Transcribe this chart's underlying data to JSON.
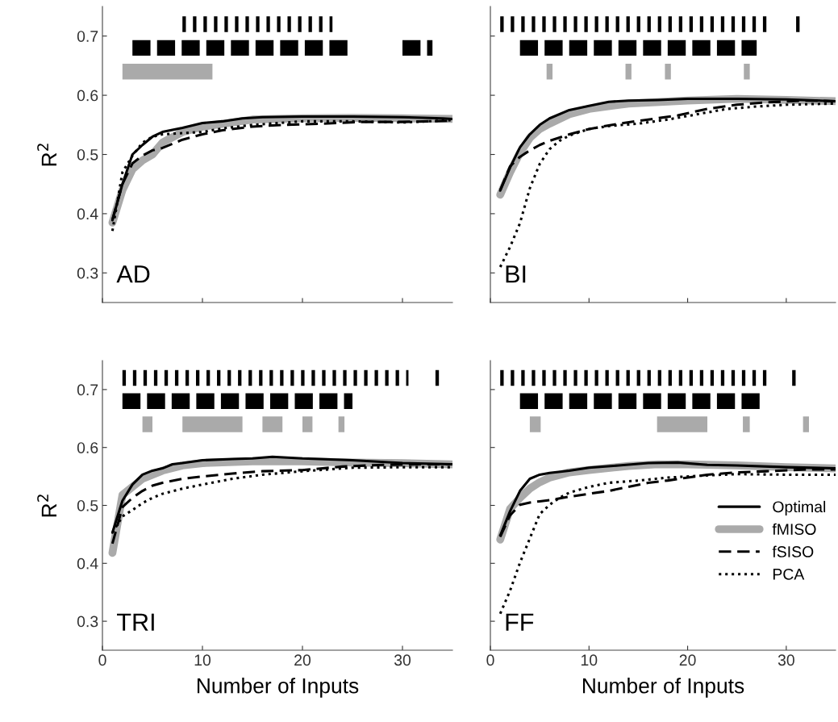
{
  "chart_data": [
    {
      "type": "line",
      "ylabel": "R$^{2}$",
      "annotations": [
        "AD"
      ],
      "xlim": [
        0,
        35
      ],
      "xticks": [
        0,
        10,
        20,
        30
      ],
      "ylim": [
        0.25,
        0.75
      ],
      "yticks": [
        0.3,
        0.4,
        0.5,
        0.6,
        0.7
      ],
      "tick_labels": "y",
      "series": [
        {
          "color": "#000000",
          "line_style": "dotted",
          "x": [
            8,
            23
          ],
          "values": [
            0.72,
            0.72
          ]
        },
        {
          "color": "#000000",
          "line_style": "dashed",
          "x": [
            3,
            25,
            27,
            30,
            33
          ],
          "values": [
            0.68,
            0.68,
            null,
            0.68,
            0.68
          ]
        },
        {
          "color": "#aaaaaa",
          "line_style": "solid",
          "x": [
            2,
            11
          ],
          "values": [
            0.64,
            0.64
          ]
        },
        {
          "color": "#aaaaaa",
          "line_style": "solid",
          "x": [
            1,
            2,
            3,
            4,
            5,
            6,
            8,
            10,
            15,
            20,
            25,
            30,
            35
          ],
          "values": [
            0.385,
            0.44,
            0.475,
            0.49,
            0.5,
            0.52,
            0.538,
            0.547,
            0.559,
            0.561,
            0.562,
            0.561,
            0.56
          ]
        },
        {
          "color": "#000000",
          "line_style": "solid",
          "x": [
            1,
            2,
            3,
            4,
            5,
            6,
            8,
            10,
            12,
            14,
            16,
            20,
            25,
            30,
            34,
            35
          ],
          "values": [
            0.389,
            0.45,
            0.5,
            0.516,
            0.53,
            0.538,
            0.545,
            0.553,
            0.556,
            0.561,
            0.563,
            0.564,
            0.564,
            0.563,
            0.561,
            0.56
          ]
        },
        {
          "color": "#000000",
          "line_style": "dashed",
          "x": [
            1,
            2,
            3,
            4,
            5,
            6,
            8,
            10,
            12,
            15,
            18,
            22,
            26,
            30,
            35
          ],
          "values": [
            0.39,
            0.45,
            0.485,
            0.498,
            0.507,
            0.511,
            0.525,
            0.534,
            0.541,
            0.547,
            0.55,
            0.552,
            0.555,
            0.555,
            0.557
          ]
        },
        {
          "color": "#000000",
          "line_style": "dotted",
          "x": [
            1,
            2,
            3,
            4,
            5,
            6,
            8,
            10,
            12,
            15,
            20,
            25,
            30,
            35
          ],
          "values": [
            0.371,
            0.47,
            0.498,
            0.52,
            0.53,
            0.534,
            0.536,
            0.538,
            0.544,
            0.55,
            0.556,
            0.556,
            0.554,
            0.558
          ]
        }
      ]
    },
    {
      "type": "line",
      "annotations": [
        "BI"
      ],
      "xlim": [
        0,
        35
      ],
      "xticks": [
        0,
        10,
        20,
        30
      ],
      "ylim": [
        0.25,
        0.75
      ],
      "yticks": [
        0.3,
        0.4,
        0.5,
        0.6,
        0.7
      ],
      "tick_labels": false,
      "series": [
        {
          "color": "#000000",
          "line_style": "dotted",
          "x": [
            1,
            28.6,
            30,
            31,
            32
          ],
          "values": [
            0.72,
            0.72,
            null,
            0.72,
            0.72
          ]
        },
        {
          "color": "#000000",
          "line_style": "dashed",
          "x": [
            3,
            27
          ],
          "values": [
            0.68,
            0.68
          ]
        },
        {
          "color": "#aaaaaa",
          "line_style": "solid",
          "x": [
            5.7,
            6.3,
            10,
            13.7,
            14.3,
            16,
            17.7,
            18.3,
            22,
            25.7,
            26.3
          ],
          "values": [
            0.64,
            0.64,
            null,
            0.64,
            0.64,
            null,
            0.64,
            0.64,
            null,
            0.64,
            0.64
          ]
        },
        {
          "color": "#aaaaaa",
          "line_style": "solid",
          "x": [
            1,
            2,
            3,
            4,
            5,
            6,
            8,
            10,
            14,
            20,
            25,
            30,
            35
          ],
          "values": [
            0.432,
            0.47,
            0.503,
            0.528,
            0.543,
            0.552,
            0.568,
            0.577,
            0.586,
            0.591,
            0.594,
            0.592,
            0.59
          ]
        },
        {
          "color": "#000000",
          "line_style": "solid",
          "x": [
            1,
            2,
            3,
            4,
            5,
            6,
            8,
            10,
            12,
            14,
            17,
            20,
            25,
            30,
            35
          ],
          "values": [
            0.439,
            0.478,
            0.512,
            0.534,
            0.55,
            0.561,
            0.575,
            0.582,
            0.589,
            0.591,
            0.592,
            0.594,
            0.594,
            0.593,
            0.59
          ]
        },
        {
          "color": "#000000",
          "line_style": "dashed",
          "x": [
            1,
            2,
            3,
            4,
            5,
            6,
            8,
            10,
            13,
            16,
            19,
            22,
            25,
            28,
            32,
            35
          ],
          "values": [
            0.44,
            0.48,
            0.496,
            0.507,
            0.516,
            0.523,
            0.534,
            0.543,
            0.552,
            0.559,
            0.566,
            0.577,
            0.584,
            0.588,
            0.591,
            0.59
          ]
        },
        {
          "color": "#000000",
          "line_style": "dotted",
          "x": [
            1,
            2,
            3,
            4,
            5,
            6,
            7,
            8,
            10,
            12,
            15,
            18,
            21,
            24,
            27,
            30,
            35
          ],
          "values": [
            0.31,
            0.344,
            0.384,
            0.443,
            0.484,
            0.509,
            0.523,
            0.532,
            0.543,
            0.548,
            0.552,
            0.559,
            0.568,
            0.577,
            0.581,
            0.584,
            0.586
          ]
        }
      ]
    },
    {
      "type": "line",
      "xlabel": "Number of Inputs",
      "ylabel": "R$^{2}$",
      "annotations": [
        "TRI"
      ],
      "xlim": [
        0,
        35
      ],
      "xticks": [
        0,
        10,
        20,
        30
      ],
      "ylim": [
        0.25,
        0.75
      ],
      "yticks": [
        0.3,
        0.4,
        0.5,
        0.6,
        0.7
      ],
      "series": [
        {
          "color": "#000000",
          "line_style": "dotted",
          "x": [
            2,
            30.6,
            32,
            33.3,
            33.7
          ],
          "values": [
            0.72,
            0.72,
            null,
            0.72,
            0.72
          ]
        },
        {
          "color": "#000000",
          "line_style": "dashed",
          "x": [
            2,
            25
          ],
          "values": [
            0.68,
            0.68
          ]
        },
        {
          "color": "#aaaaaa",
          "line_style": "solid",
          "x": [
            4,
            5,
            6,
            8,
            14,
            15,
            16,
            18,
            19,
            20,
            21,
            22,
            23.6,
            24.2
          ],
          "values": [
            0.64,
            0.64,
            null,
            0.64,
            0.64,
            null,
            0.64,
            0.64,
            null,
            0.64,
            0.64,
            null,
            0.64,
            0.64
          ]
        },
        {
          "color": "#aaaaaa",
          "line_style": "solid",
          "x": [
            1,
            2,
            3,
            4,
            5,
            6,
            8,
            10,
            15,
            20,
            25,
            30,
            35
          ],
          "values": [
            0.418,
            0.518,
            0.532,
            0.546,
            0.553,
            0.56,
            0.569,
            0.573,
            0.576,
            0.576,
            0.574,
            0.573,
            0.571
          ]
        },
        {
          "color": "#000000",
          "line_style": "solid",
          "x": [
            1,
            2,
            3,
            4,
            5,
            6,
            7,
            8,
            10,
            13,
            15,
            17,
            20,
            25,
            30,
            35
          ],
          "values": [
            0.453,
            0.508,
            0.536,
            0.553,
            0.56,
            0.564,
            0.571,
            0.573,
            0.578,
            0.58,
            0.581,
            0.584,
            0.581,
            0.578,
            0.573,
            0.571
          ]
        },
        {
          "color": "#000000",
          "line_style": "dashed",
          "x": [
            1,
            2,
            3,
            4,
            5,
            6,
            8,
            10,
            13,
            16,
            20,
            24,
            28,
            32,
            35
          ],
          "values": [
            0.434,
            0.497,
            0.513,
            0.525,
            0.534,
            0.539,
            0.546,
            0.55,
            0.555,
            0.559,
            0.561,
            0.567,
            0.57,
            0.571,
            0.571
          ]
        },
        {
          "color": "#000000",
          "line_style": "dotted",
          "x": [
            1,
            2,
            3,
            4,
            5,
            6,
            8,
            10,
            13,
            16,
            20,
            25,
            30,
            35
          ],
          "values": [
            0.453,
            0.481,
            0.492,
            0.504,
            0.513,
            0.52,
            0.529,
            0.536,
            0.546,
            0.553,
            0.559,
            0.565,
            0.566,
            0.566
          ]
        }
      ]
    },
    {
      "type": "line",
      "xlabel": "Number of Inputs",
      "annotations": [
        "FF"
      ],
      "xlim": [
        0,
        35
      ],
      "xticks": [
        0,
        10,
        20,
        30
      ],
      "ylim": [
        0.25,
        0.75
      ],
      "yticks": [
        0.3,
        0.4,
        0.5,
        0.6,
        0.7
      ],
      "tick_labels": "x",
      "legend": "bottom right",
      "series": [
        {
          "color": "#000000",
          "line_style": "dotted",
          "x": [
            1,
            28.6,
            29.5,
            30.6,
            31
          ],
          "values": [
            0.72,
            0.72,
            null,
            0.72,
            0.72
          ]
        },
        {
          "color": "#000000",
          "line_style": "dashed",
          "x": [
            3,
            27.7
          ],
          "values": [
            0.68,
            0.68
          ]
        },
        {
          "color": "#aaaaaa",
          "line_style": "solid",
          "x": [
            4,
            5.1,
            10,
            16.9,
            22,
            24,
            25.6,
            26.3,
            29,
            31.7,
            32.3
          ],
          "values": [
            0.64,
            0.64,
            null,
            0.64,
            0.64,
            null,
            0.64,
            0.64,
            null,
            0.64,
            0.64
          ]
        },
        {
          "name": "Optimal",
          "color": "#000000",
          "line_style": "solid",
          "x": [
            1,
            2,
            3,
            4,
            5,
            6,
            8,
            10,
            13,
            16,
            19,
            22,
            25,
            30,
            35
          ],
          "values": [
            0.448,
            0.49,
            0.525,
            0.546,
            0.553,
            0.556,
            0.56,
            0.565,
            0.569,
            0.573,
            0.574,
            0.57,
            0.569,
            0.566,
            0.564
          ]
        },
        {
          "name": "fMISO",
          "color": "#aaaaaa",
          "line_style": "solid",
          "x": [
            1,
            2,
            3,
            4,
            5,
            6,
            8,
            10,
            14,
            17,
            20,
            25,
            30,
            35
          ],
          "values": [
            0.441,
            0.494,
            0.513,
            0.529,
            0.54,
            0.548,
            0.557,
            0.561,
            0.568,
            0.571,
            0.571,
            0.569,
            0.566,
            0.564
          ]
        },
        {
          "name": "fSISO",
          "color": "#000000",
          "line_style": "dashed",
          "x": [
            1,
            2,
            3,
            4,
            5,
            6,
            8,
            10,
            12,
            14,
            16,
            18,
            20,
            22,
            25,
            28,
            32,
            35
          ],
          "values": [
            0.446,
            0.483,
            0.501,
            0.505,
            0.507,
            0.509,
            0.515,
            0.52,
            0.525,
            0.532,
            0.539,
            0.543,
            0.548,
            0.553,
            0.557,
            0.559,
            0.562,
            0.562
          ]
        },
        {
          "name": "PCA",
          "color": "#000000",
          "line_style": "dotted",
          "x": [
            1,
            2,
            3,
            4,
            5,
            6,
            7,
            8,
            10,
            12,
            15,
            18,
            21,
            25,
            30,
            35
          ],
          "values": [
            0.313,
            0.353,
            0.401,
            0.443,
            0.485,
            0.501,
            0.513,
            0.522,
            0.532,
            0.539,
            0.543,
            0.548,
            0.551,
            0.554,
            0.553,
            0.553
          ]
        }
      ]
    }
  ]
}
